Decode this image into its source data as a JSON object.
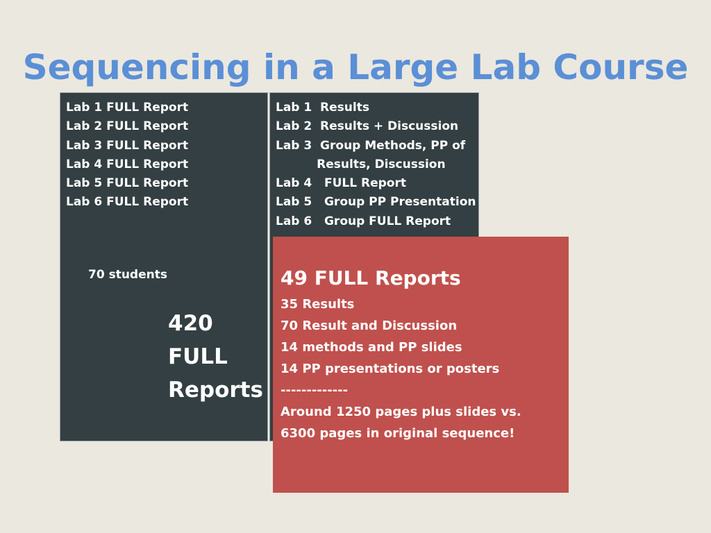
{
  "slide": {
    "title": "Sequencing in a Large Lab Course"
  },
  "original_sequence": {
    "labs": [
      "Lab 1 FULL Report",
      "Lab 2 FULL Report",
      "Lab 3 FULL Report",
      "Lab 4 FULL Report",
      "Lab 5 FULL Report",
      "Lab 6 FULL Report"
    ],
    "students_label": "70 students",
    "total_lines": [
      "420",
      "FULL",
      "Reports"
    ]
  },
  "new_sequence": {
    "labs": [
      "Lab 1  Results",
      "Lab 2  Results + Discussion",
      "Lab 3  Group Methods, PP of",
      "          Results, Discussion",
      "Lab 4   FULL Report",
      "Lab 5   Group PP Presentation",
      "Lab 6   Group FULL Report"
    ]
  },
  "summary": {
    "heading": "49 FULL Reports",
    "lines": [
      "35 Results",
      "70 Result and Discussion",
      "14 methods and PP slides",
      "14 PP presentations or posters",
      "-------------",
      "Around 1250 pages plus slides vs.",
      "6300 pages in original sequence!"
    ]
  },
  "colors": {
    "background": "#ebe8df",
    "title": "#5b8fd6",
    "panel": "#333f42",
    "summary_box": "#c0504d",
    "text": "#ffffff"
  }
}
